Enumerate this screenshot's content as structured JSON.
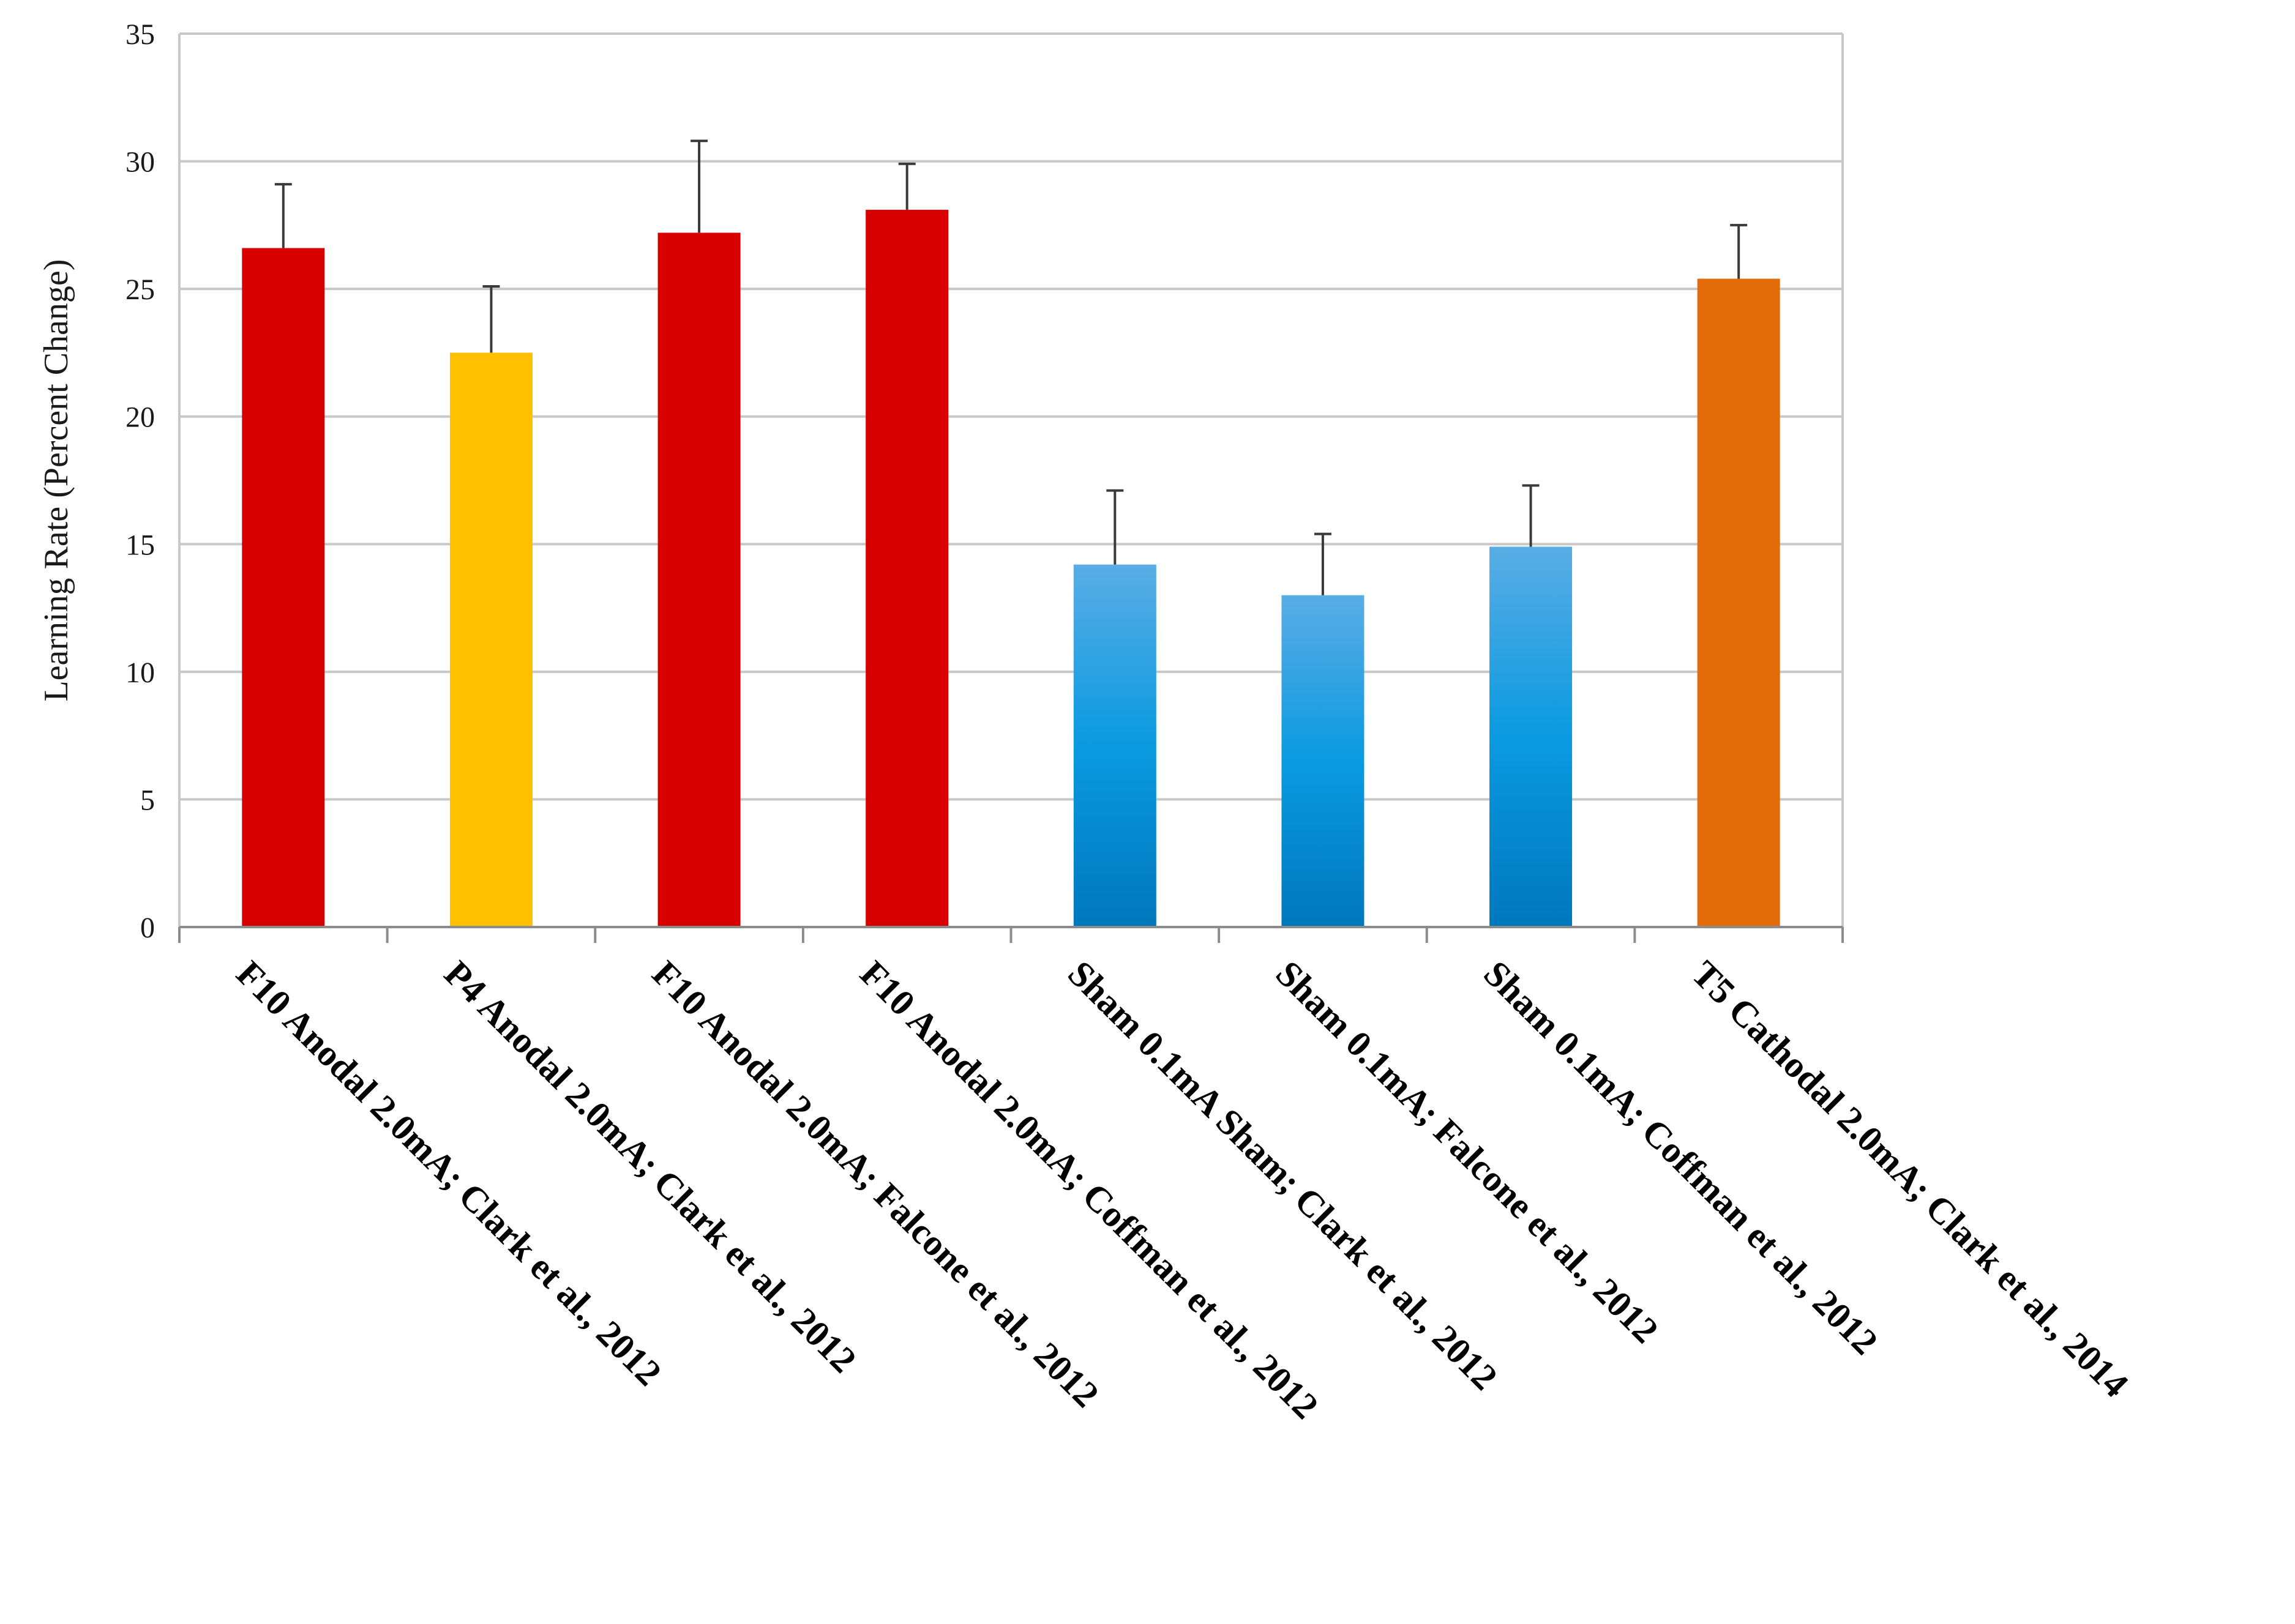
{
  "chart_data": {
    "type": "bar",
    "title": "",
    "xlabel": "",
    "ylabel": "Learning Rate (Percent Change)",
    "ylim": [
      0,
      35
    ],
    "yticks": [
      0,
      5,
      10,
      15,
      20,
      25,
      30,
      35
    ],
    "grid": true,
    "legend": "none",
    "categories": [
      "F10 Anodal 2.0mA; Clark et al., 2012",
      "P4 Anodal 2.0mA; Clark et al., 2012",
      "F10 Anodal 2.0mA; Falcone et al., 2012",
      "F10 Anodal 2.0mA; Coffman et al., 2012",
      "Sham 0.1mA Sham; Clark et al., 2012",
      "Sham 0.1mA; Falcone et al., 2012",
      "Sham 0.1mA; Coffman et al., 2012",
      "T5 Cathodal 2.0mA; Clark et al., 2014"
    ],
    "values": [
      26.6,
      22.5,
      27.2,
      28.1,
      14.2,
      13.0,
      14.9,
      25.4
    ],
    "error_upper": [
      2.5,
      2.6,
      3.6,
      1.8,
      2.9,
      2.4,
      2.4,
      2.1
    ],
    "colors": [
      "#d90000",
      "#ffc000",
      "#d90000",
      "#d90000",
      "#1a9ad8",
      "#1a9ad8",
      "#1a9ad8",
      "#e36c0a"
    ],
    "color_groups": {
      "anodal": "#d90000",
      "parietal": "#ffc000",
      "sham": "#1a9ad8",
      "cathodal": "#e36c0a"
    }
  }
}
